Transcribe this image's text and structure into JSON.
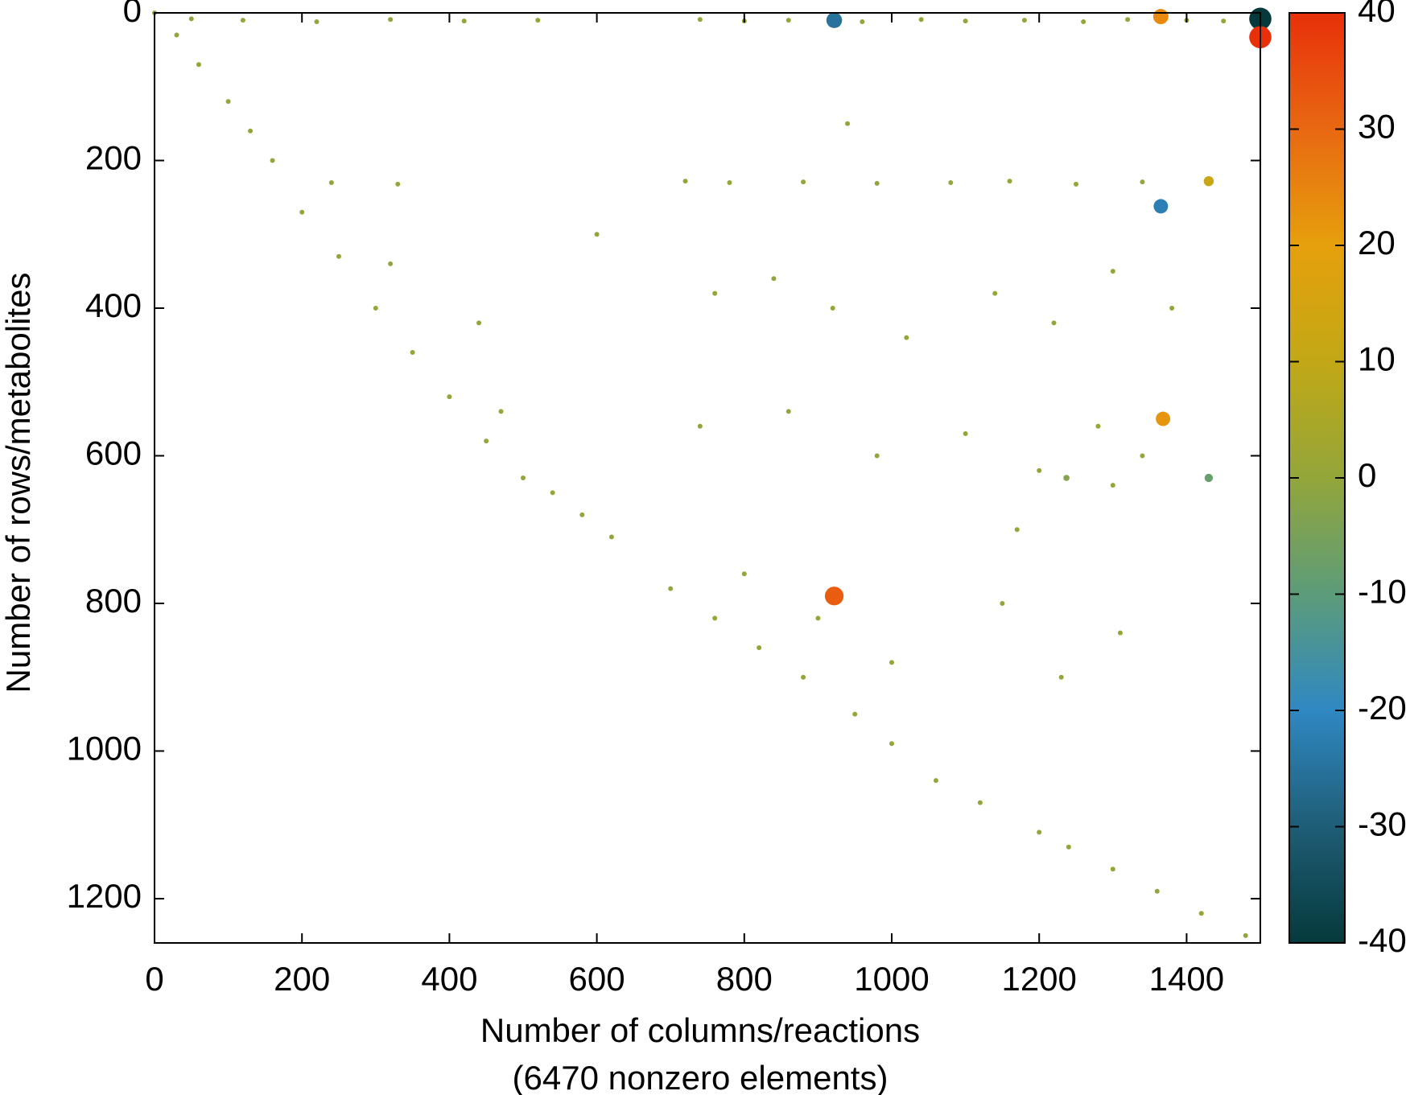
{
  "chart_data": {
    "type": "scatter",
    "x_label": "Number of columns/reactions",
    "x_label_2": "(6470 nonzero elements)",
    "y_label": "Number of rows/metabolites",
    "xlim": [
      0,
      1500
    ],
    "ylim": [
      1260,
      0
    ],
    "xticks": [
      0,
      200,
      400,
      600,
      800,
      1000,
      1200,
      1400
    ],
    "yticks": [
      0,
      200,
      400,
      600,
      800,
      1000,
      1200
    ],
    "clim": [
      -40,
      40
    ],
    "cticks": [
      -40,
      -30,
      -20,
      -10,
      0,
      10,
      20,
      30,
      40
    ],
    "colormap": [
      "#053a3c",
      "#1f5d76",
      "#2f88c2",
      "#5c9c7a",
      "#93a63a",
      "#c2a816",
      "#e6a00c",
      "#e86812",
      "#e8300a"
    ],
    "x": [
      0,
      30,
      60,
      100,
      130,
      160,
      200,
      250,
      300,
      350,
      400,
      450,
      500,
      540,
      580,
      620,
      700,
      760,
      820,
      880,
      950,
      1000,
      1060,
      1120,
      1200,
      1240,
      1300,
      1360,
      1420,
      1480,
      50,
      120,
      220,
      320,
      420,
      520,
      740,
      800,
      860,
      960,
      1040,
      1100,
      1180,
      1260,
      1320,
      1400,
      1450,
      240,
      330,
      720,
      780,
      880,
      980,
      1080,
      1160,
      1250,
      1340,
      320,
      440,
      760,
      840,
      920,
      1020,
      1140,
      1220,
      1300,
      1380,
      740,
      860,
      980,
      1100,
      1200,
      1280,
      1340,
      800,
      900,
      1000,
      1150,
      1230,
      1310,
      470,
      600,
      940,
      1170,
      1300,
      922,
      1365,
      1500,
      1500,
      1365,
      1368,
      922,
      1430,
      1430,
      1237
    ],
    "y": [
      0,
      30,
      70,
      120,
      160,
      200,
      270,
      330,
      400,
      460,
      520,
      580,
      630,
      650,
      680,
      710,
      780,
      820,
      860,
      900,
      950,
      990,
      1040,
      1070,
      1110,
      1130,
      1160,
      1190,
      1220,
      1250,
      8,
      10,
      12,
      9,
      11,
      10,
      9,
      11,
      10,
      12,
      9,
      11,
      10,
      12,
      9,
      10,
      11,
      230,
      232,
      228,
      230,
      229,
      231,
      230,
      228,
      232,
      229,
      340,
      420,
      380,
      360,
      400,
      440,
      380,
      420,
      350,
      400,
      560,
      540,
      600,
      570,
      620,
      560,
      600,
      760,
      820,
      880,
      800,
      900,
      840,
      540,
      300,
      150,
      700,
      640,
      10,
      5,
      8,
      33,
      262,
      550,
      790,
      228,
      630,
      630
    ],
    "values": [
      0,
      0,
      0,
      0,
      0,
      0,
      0,
      0,
      0,
      0,
      0,
      0,
      0,
      0,
      0,
      0,
      0,
      0,
      0,
      0,
      0,
      0,
      0,
      0,
      0,
      0,
      0,
      0,
      0,
      0,
      0,
      0,
      0,
      0,
      0,
      0,
      0,
      0,
      0,
      0,
      0,
      0,
      0,
      0,
      0,
      0,
      0,
      0,
      0,
      0,
      0,
      0,
      0,
      0,
      0,
      0,
      0,
      0,
      0,
      0,
      0,
      0,
      0,
      0,
      0,
      0,
      0,
      0,
      0,
      0,
      0,
      0,
      0,
      0,
      0,
      0,
      0,
      0,
      0,
      0,
      0,
      0,
      0,
      0,
      0,
      -25,
      24,
      -40,
      40,
      -22,
      22,
      32,
      12,
      -8,
      -3
    ]
  }
}
